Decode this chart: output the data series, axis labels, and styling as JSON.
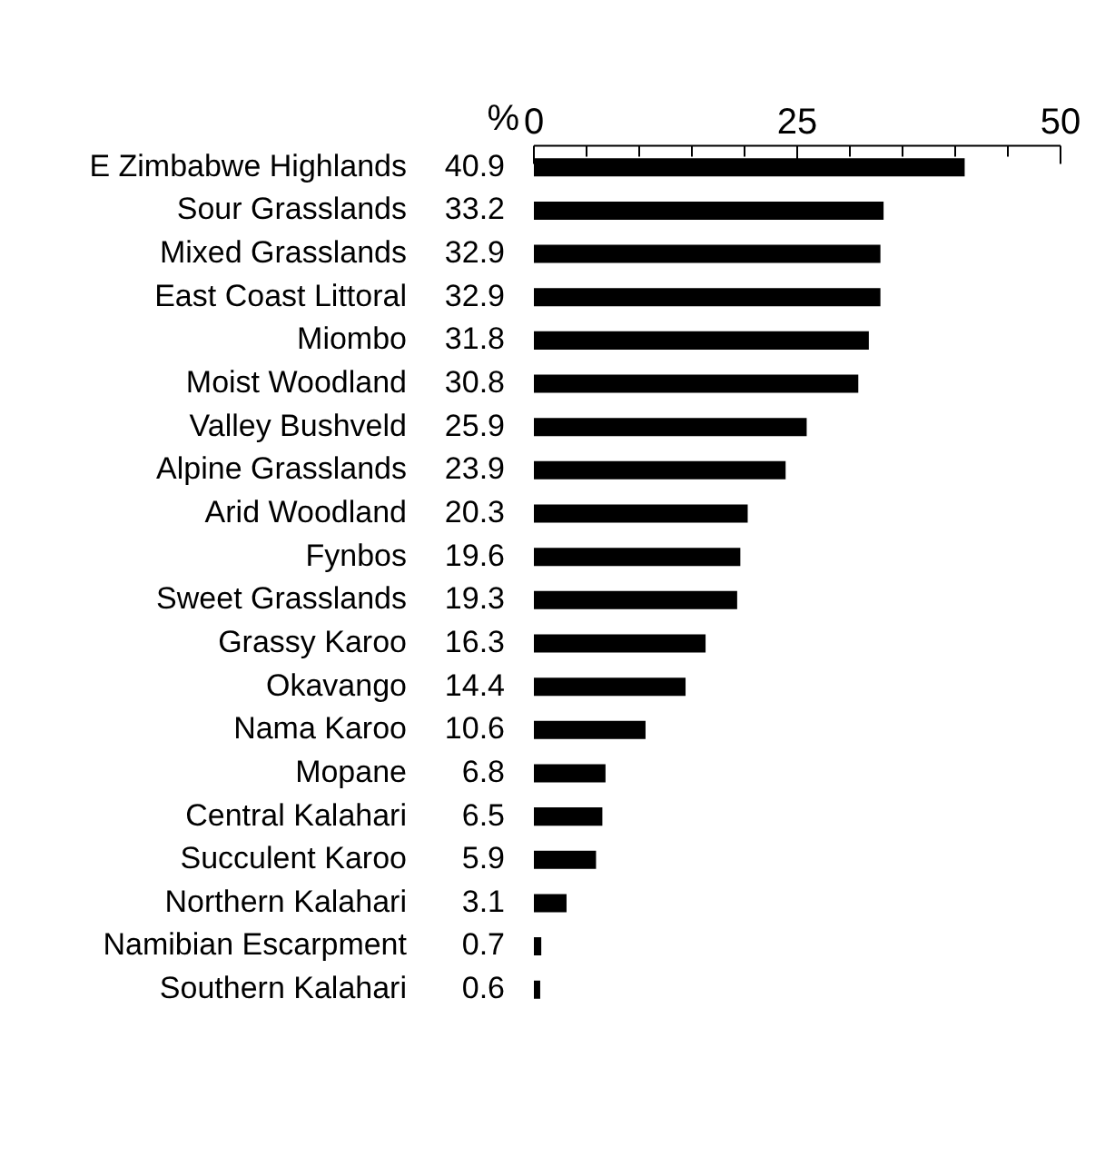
{
  "chart_data": {
    "type": "bar",
    "orientation": "horizontal",
    "xlabel": "%",
    "categories": [
      "E Zimbabwe Highlands",
      "Sour Grasslands",
      "Mixed Grasslands",
      "East Coast Littoral",
      "Miombo",
      "Moist Woodland",
      "Valley Bushveld",
      "Alpine Grasslands",
      "Arid Woodland",
      "Fynbos",
      "Sweet Grasslands",
      "Grassy Karoo",
      "Okavango",
      "Nama Karoo",
      "Mopane",
      "Central Kalahari",
      "Succulent Karoo",
      "Northern Kalahari",
      "Namibian Escarpment",
      "Southern Kalahari"
    ],
    "values": [
      40.9,
      33.2,
      32.9,
      32.9,
      31.8,
      30.8,
      25.9,
      23.9,
      20.3,
      19.6,
      19.3,
      16.3,
      14.4,
      10.6,
      6.8,
      6.5,
      5.9,
      3.1,
      0.7,
      0.6
    ],
    "color": "#000000",
    "data_labels": true,
    "grid": false,
    "legend": false,
    "xlim": [
      0,
      50
    ],
    "xticks": [
      0,
      {
        "value": 5,
        "label": null
      },
      {
        "value": 10,
        "label": null
      },
      {
        "value": 15,
        "label": null
      },
      {
        "value": 20,
        "label": null
      },
      25,
      {
        "value": 30,
        "label": null
      },
      {
        "value": 35,
        "label": null
      },
      {
        "value": 40,
        "label": null
      },
      {
        "value": 45,
        "label": null
      },
      50
    ]
  }
}
